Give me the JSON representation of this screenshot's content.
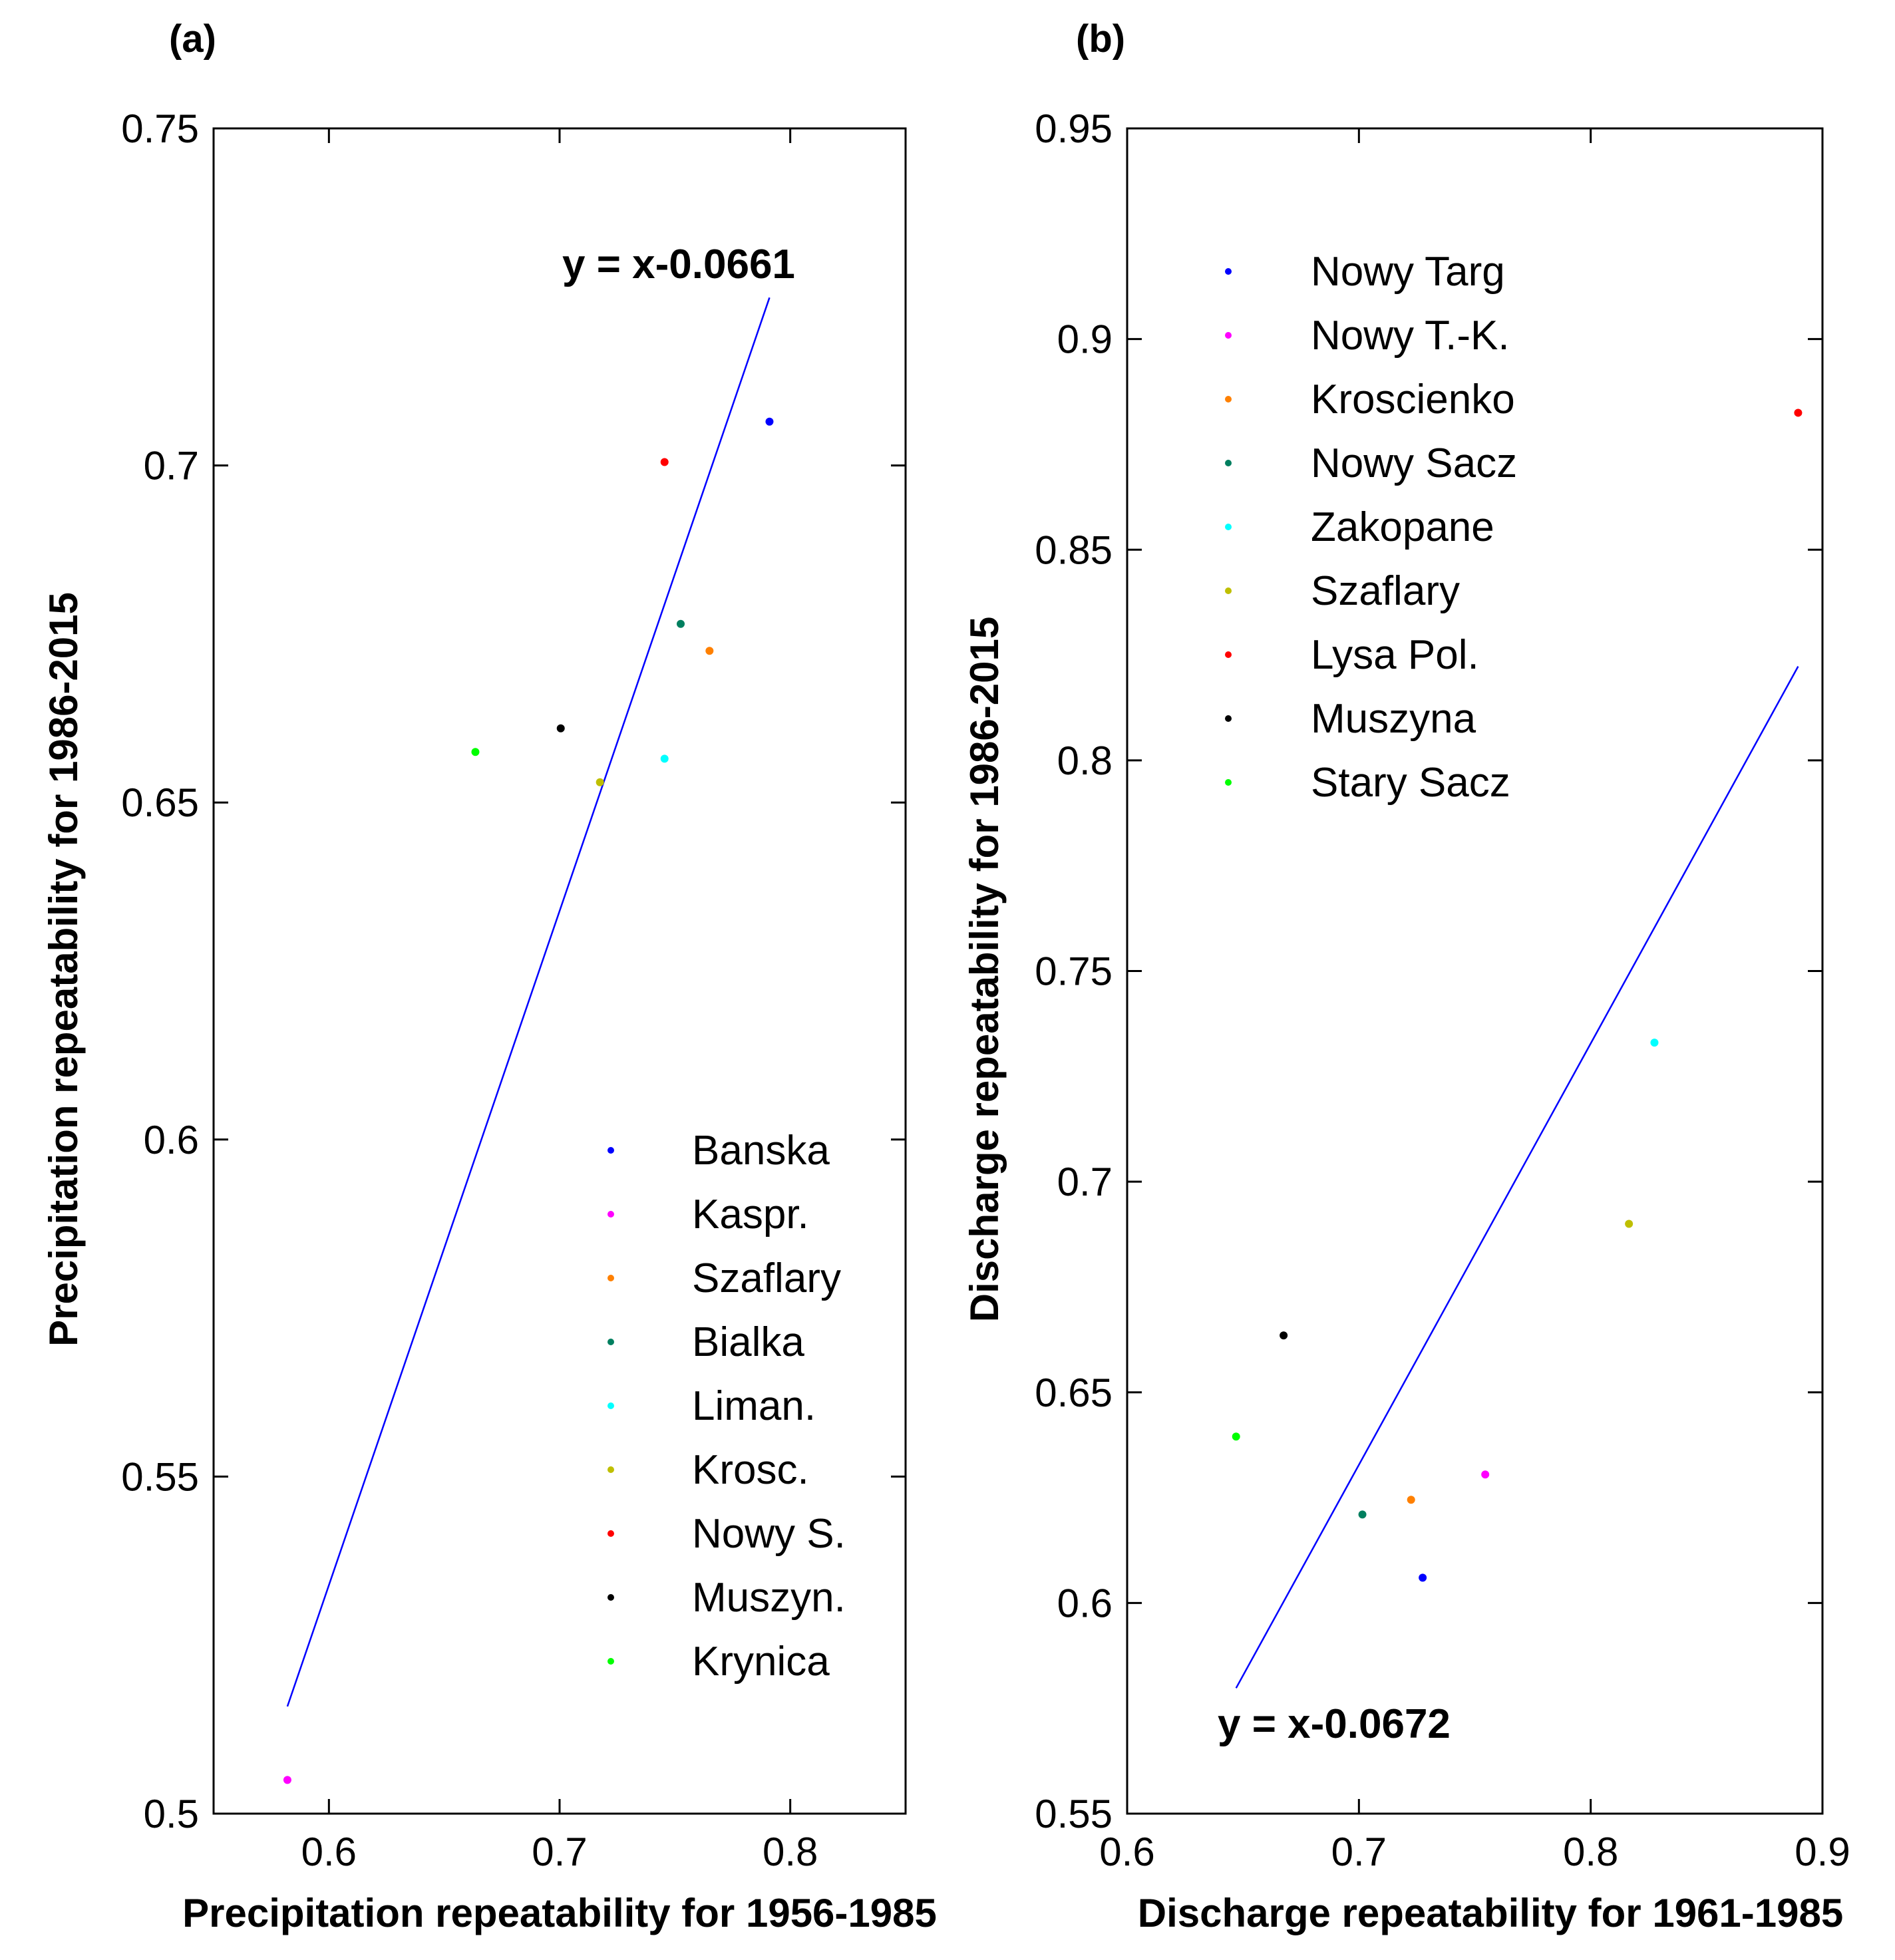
{
  "chart_data": [
    {
      "type": "scatter",
      "panel_label": "(a)",
      "xlabel": "Precipitation repeatability for 1956-1985",
      "ylabel": "Precipitation repeatability for 1986-2015",
      "xlim": [
        0.55,
        0.85
      ],
      "ylim": [
        0.5,
        0.75
      ],
      "xticks": [
        0.6,
        0.7,
        0.8
      ],
      "xtick_labels": [
        "0.6",
        "0.7",
        "0.8"
      ],
      "yticks": [
        0.5,
        0.55,
        0.6,
        0.65,
        0.7,
        0.75
      ],
      "ytick_labels": [
        "0.5",
        "0.55",
        "0.6",
        "0.65",
        "0.7",
        "0.75"
      ],
      "legend_position": "bottom-right",
      "fit_line": {
        "label": "y = x-0.0661",
        "offset": -0.0661,
        "x_range": [
          0.582,
          0.791
        ]
      },
      "series": [
        {
          "name": "Banska",
          "color": "#0000ff",
          "x": 0.791,
          "y": 0.7065
        },
        {
          "name": "Kaspr.",
          "color": "#ff00ff",
          "x": 0.582,
          "y": 0.505
        },
        {
          "name": "Szaflary",
          "color": "#ff8000",
          "x": 0.765,
          "y": 0.6725
        },
        {
          "name": "Bialka",
          "color": "#007f5f",
          "x": 0.7525,
          "y": 0.6765
        },
        {
          "name": "Liman.",
          "color": "#00ffff",
          "x": 0.7455,
          "y": 0.6565
        },
        {
          "name": "Krosc.",
          "color": "#bfbf00",
          "x": 0.7175,
          "y": 0.653
        },
        {
          "name": "Nowy S.",
          "color": "#ff0000",
          "x": 0.7455,
          "y": 0.7005
        },
        {
          "name": "Muszyn.",
          "color": "#000000",
          "x": 0.7005,
          "y": 0.661
        },
        {
          "name": "Krynica",
          "color": "#00ff00",
          "x": 0.6635,
          "y": 0.6575
        }
      ]
    },
    {
      "type": "scatter",
      "panel_label": "(b)",
      "xlabel": "Discharge repeatability for 1961-1985",
      "ylabel": "Discharge repeatability for 1986-2015",
      "xlim": [
        0.6,
        0.9
      ],
      "ylim": [
        0.55,
        0.95
      ],
      "xticks": [
        0.6,
        0.7,
        0.8,
        0.9
      ],
      "xtick_labels": [
        "0.6",
        "0.7",
        "0.8",
        "0.9"
      ],
      "yticks": [
        0.55,
        0.6,
        0.65,
        0.7,
        0.75,
        0.8,
        0.85,
        0.9,
        0.95
      ],
      "ytick_labels": [
        "0.55",
        "0.6",
        "0.65",
        "0.7",
        "0.75",
        "0.8",
        "0.85",
        "0.9",
        "0.95"
      ],
      "legend_position": "top-left",
      "fit_line": {
        "label": "y = x-0.0672",
        "offset": -0.0672,
        "x_range": [
          0.647,
          0.8895
        ]
      },
      "series": [
        {
          "name": "Nowy Targ",
          "color": "#0000ff",
          "x": 0.7275,
          "y": 0.606
        },
        {
          "name": "Nowy T.-K.",
          "color": "#ff00ff",
          "x": 0.7545,
          "y": 0.6305
        },
        {
          "name": "Kroscienko",
          "color": "#ff8000",
          "x": 0.7225,
          "y": 0.6245
        },
        {
          "name": "Nowy Sacz",
          "color": "#007f5f",
          "x": 0.7015,
          "y": 0.621
        },
        {
          "name": "Zakopane",
          "color": "#00ffff",
          "x": 0.8275,
          "y": 0.733
        },
        {
          "name": "Szaflary",
          "color": "#bfbf00",
          "x": 0.8165,
          "y": 0.69
        },
        {
          "name": "Lysa Pol.",
          "color": "#ff0000",
          "x": 0.8895,
          "y": 0.8825
        },
        {
          "name": "Muszyna",
          "color": "#000000",
          "x": 0.6675,
          "y": 0.6635
        },
        {
          "name": "Stary Sacz",
          "color": "#00ff00",
          "x": 0.647,
          "y": 0.6395
        }
      ]
    }
  ]
}
